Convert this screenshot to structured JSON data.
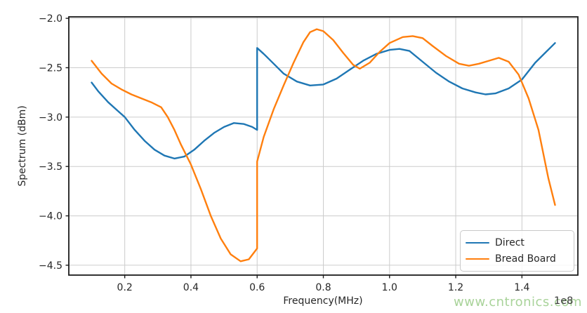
{
  "figure": {
    "background": "#ffffff",
    "spine_color": "#1c1c1c",
    "grid_color": "#cccccc",
    "tick_text_color": "#262626"
  },
  "watermark": {
    "text": "www.cntronics.com",
    "color": "#a9d39a"
  },
  "chart_data": {
    "type": "line",
    "title": "",
    "xlabel": "Frequency(MHz)",
    "ylabel": "Spectrum (dBm)",
    "x_offset_label": "1e8",
    "xlim": [
      0.031,
      1.569
    ],
    "ylim": [
      -4.6,
      -1.985
    ],
    "xticks": [
      0.2,
      0.4,
      0.6,
      0.8,
      1.0,
      1.2,
      1.4
    ],
    "xtick_labels": [
      "0.2",
      "0.4",
      "0.6",
      "0.8",
      "1.0",
      "1.2",
      "1.4"
    ],
    "yticks": [
      -2.0,
      -2.5,
      -3.0,
      -3.5,
      -4.0,
      -4.5
    ],
    "ytick_labels": [
      "−2.0",
      "−2.5",
      "−3.0",
      "−3.5",
      "−4.0",
      "−4.5"
    ],
    "grid": true,
    "legend": {
      "position": "lower right",
      "entries": [
        "Direct",
        "Bread Board"
      ]
    },
    "series": [
      {
        "name": "Direct",
        "color": "#1f77b4",
        "x": [
          0.1,
          0.12,
          0.15,
          0.18,
          0.2,
          0.23,
          0.26,
          0.29,
          0.32,
          0.35,
          0.38,
          0.41,
          0.44,
          0.47,
          0.5,
          0.53,
          0.56,
          0.585,
          0.6,
          0.6,
          0.62,
          0.65,
          0.68,
          0.72,
          0.76,
          0.8,
          0.84,
          0.88,
          0.92,
          0.96,
          1.0,
          1.03,
          1.06,
          1.1,
          1.14,
          1.18,
          1.22,
          1.26,
          1.29,
          1.32,
          1.36,
          1.4,
          1.44,
          1.47,
          1.5
        ],
        "y": [
          -2.65,
          -2.74,
          -2.85,
          -2.94,
          -3.0,
          -3.13,
          -3.24,
          -3.33,
          -3.39,
          -3.42,
          -3.4,
          -3.33,
          -3.24,
          -3.16,
          -3.1,
          -3.06,
          -3.07,
          -3.1,
          -3.13,
          -2.3,
          -2.36,
          -2.46,
          -2.56,
          -2.64,
          -2.68,
          -2.67,
          -2.61,
          -2.52,
          -2.43,
          -2.36,
          -2.32,
          -2.31,
          -2.33,
          -2.44,
          -2.55,
          -2.64,
          -2.71,
          -2.75,
          -2.77,
          -2.76,
          -2.71,
          -2.62,
          -2.45,
          -2.35,
          -2.25
        ]
      },
      {
        "name": "Bread Board",
        "color": "#ff7f0e",
        "x": [
          0.1,
          0.13,
          0.16,
          0.19,
          0.22,
          0.25,
          0.28,
          0.31,
          0.33,
          0.35,
          0.37,
          0.4,
          0.43,
          0.46,
          0.49,
          0.52,
          0.55,
          0.575,
          0.6,
          0.6,
          0.62,
          0.65,
          0.68,
          0.71,
          0.74,
          0.76,
          0.78,
          0.8,
          0.83,
          0.86,
          0.89,
          0.91,
          0.94,
          0.97,
          1.0,
          1.04,
          1.07,
          1.1,
          1.13,
          1.17,
          1.21,
          1.24,
          1.27,
          1.3,
          1.33,
          1.36,
          1.39,
          1.42,
          1.45,
          1.48,
          1.5
        ],
        "y": [
          -2.43,
          -2.56,
          -2.66,
          -2.72,
          -2.77,
          -2.81,
          -2.85,
          -2.9,
          -3.0,
          -3.13,
          -3.28,
          -3.48,
          -3.73,
          -4.0,
          -4.23,
          -4.39,
          -4.46,
          -4.44,
          -4.33,
          -3.45,
          -3.2,
          -2.92,
          -2.68,
          -2.45,
          -2.24,
          -2.14,
          -2.11,
          -2.13,
          -2.22,
          -2.35,
          -2.47,
          -2.51,
          -2.45,
          -2.34,
          -2.25,
          -2.19,
          -2.18,
          -2.2,
          -2.28,
          -2.38,
          -2.46,
          -2.48,
          -2.46,
          -2.43,
          -2.4,
          -2.44,
          -2.57,
          -2.81,
          -3.13,
          -3.62,
          -3.89
        ]
      }
    ]
  }
}
